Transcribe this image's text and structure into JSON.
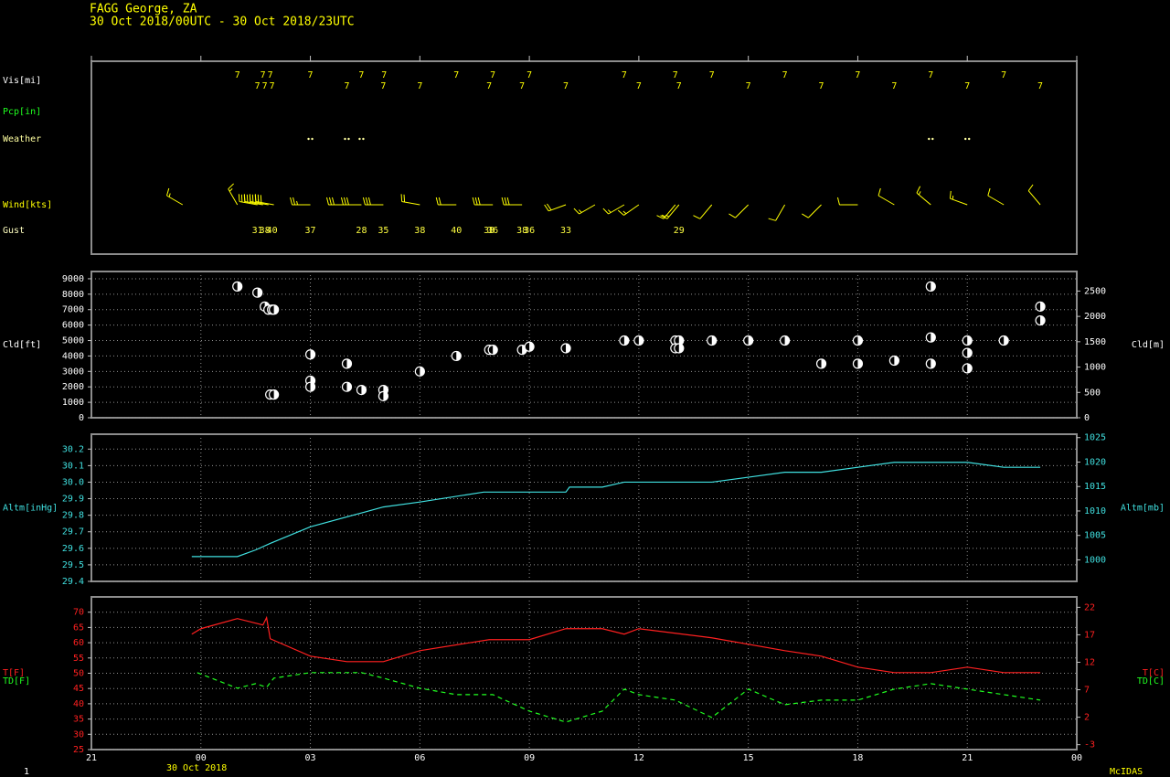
{
  "header": {
    "station": "FAGG  George,  ZA",
    "period": "30 Oct 2018/00UTC - 30 Oct 2018/23UTC"
  },
  "footer": {
    "page": "1",
    "brand": "McIDAS"
  },
  "chart_data": [
    {
      "type": "station-plot",
      "vis": {
        "name": "Vis[mi]",
        "color": "#ffff00",
        "label_color": "#ffffff",
        "x": [
          1,
          1.55,
          1.7,
          1.75,
          1.9,
          1.95,
          3,
          4,
          4.4,
          5,
          5.02,
          6,
          7,
          7.9,
          8,
          8.8,
          9,
          10,
          11.6,
          12,
          13,
          13.1,
          14,
          15,
          16,
          17,
          18,
          19,
          20,
          21,
          22,
          23
        ],
        "values": [
          7,
          7,
          7,
          7,
          7,
          7,
          7,
          7,
          7,
          7,
          7,
          7,
          7,
          7,
          7,
          7,
          7,
          7,
          7,
          7,
          7,
          7,
          7,
          7,
          7,
          7,
          7,
          7,
          7,
          7,
          7,
          7
        ]
      },
      "pcp": {
        "name": "Pcp[in]",
        "color": "#20ff20"
      },
      "weather": {
        "name": "Weather",
        "color": "#ffffa0",
        "x": [
          3,
          4,
          4.4,
          20,
          21
        ]
      },
      "wind": {
        "name": "Wind[kts]",
        "color": "#ffff00",
        "x": [
          -0.5,
          1,
          1.55,
          1.7,
          1.85,
          2,
          3,
          4,
          4.4,
          5,
          6,
          7,
          8,
          8.8,
          10,
          10.8,
          11.6,
          12,
          13,
          13.1,
          14,
          15,
          16,
          17,
          18,
          19,
          20,
          21,
          22,
          23
        ],
        "direction": [
          300,
          330,
          280,
          280,
          280,
          280,
          270,
          270,
          270,
          270,
          280,
          270,
          270,
          270,
          250,
          240,
          240,
          235,
          220,
          220,
          220,
          225,
          210,
          225,
          270,
          300,
          310,
          290,
          300,
          320
        ],
        "speed": [
          15,
          15,
          30,
          30,
          35,
          30,
          25,
          30,
          30,
          30,
          20,
          20,
          30,
          30,
          20,
          15,
          15,
          15,
          15,
          15,
          10,
          10,
          10,
          10,
          10,
          10,
          15,
          15,
          10,
          10
        ]
      },
      "gust": {
        "name": "Gust",
        "color": "#ffff40",
        "label_color": "#ffffc0",
        "x": [
          1.55,
          1.75,
          1.95,
          3,
          4.4,
          5,
          6,
          7,
          7.9,
          8,
          8.8,
          9,
          10,
          13.1
        ],
        "values": [
          31,
          38,
          40,
          37,
          28,
          35,
          38,
          40,
          38,
          36,
          38,
          36,
          33,
          29
        ]
      }
    },
    {
      "type": "scatter",
      "ylabel": "Cld[ft]",
      "y2label": "Cld[m]",
      "axis_color": "#ffffff",
      "color": "#ffffff",
      "grid": true,
      "ylim": [
        0,
        9470
      ],
      "yticks": [
        0,
        1000,
        2000,
        3000,
        4000,
        5000,
        6000,
        7000,
        8000,
        9000
      ],
      "y2lim": [
        0,
        2886
      ],
      "y2ticks": [
        0,
        500,
        1000,
        1500,
        2000,
        2500
      ],
      "x": [
        1,
        1.55,
        1.75,
        1.85,
        1.95,
        2,
        1.9,
        2,
        3,
        3,
        3,
        4,
        4,
        4.4,
        5,
        5,
        6,
        7,
        7.9,
        8,
        8.8,
        9,
        10,
        11.6,
        12,
        13,
        13.1,
        13,
        13.1,
        14,
        15,
        16,
        17,
        18,
        18,
        19,
        20,
        20,
        20,
        21,
        21,
        21,
        22,
        23,
        23
      ],
      "values": [
        8500,
        8100,
        7200,
        7000,
        7000,
        7000,
        1500,
        1500,
        4100,
        2400,
        2000,
        3500,
        2000,
        1800,
        1800,
        1400,
        3000,
        4000,
        4400,
        4400,
        4400,
        4600,
        4500,
        5000,
        5000,
        5000,
        5000,
        4500,
        4500,
        5000,
        5000,
        5000,
        3500,
        5000,
        3500,
        3700,
        8500,
        5200,
        3500,
        5000,
        4200,
        3200,
        5000,
        7200,
        6300
      ]
    },
    {
      "type": "line",
      "ylabel": "Altm[inHg]",
      "y2label": "Altm[mb]",
      "axis_color": "#40e0e0",
      "grid": true,
      "ylim": [
        29.4,
        30.29
      ],
      "yticks": [
        29.4,
        29.5,
        29.6,
        29.7,
        29.8,
        29.9,
        {
          "value": 30,
          "label": "30.0"
        },
        30.1,
        30.2
      ],
      "y2lim": [
        995.6,
        1025.7
      ],
      "y2ticks": [
        1000,
        1005,
        1010,
        1015,
        1020,
        1025
      ],
      "series": [
        {
          "color": "#40e0e0",
          "x": [
            -0.25,
            1,
            1.5,
            1.9,
            3,
            4.5,
            5,
            6,
            7.75,
            10,
            10.1,
            11,
            11.6,
            14,
            15,
            16,
            17,
            18,
            19,
            21,
            22,
            23
          ],
          "values": [
            29.55,
            29.55,
            29.59,
            29.63,
            29.73,
            29.82,
            29.85,
            29.88,
            29.94,
            29.94,
            29.97,
            29.97,
            30,
            30,
            30.03,
            30.06,
            30.06,
            30.09,
            30.12,
            30.12,
            30.09,
            30.09
          ]
        }
      ]
    },
    {
      "type": "line",
      "axis_color": "#ff2020",
      "grid": true,
      "xlabel": "30 Oct 2018",
      "xlim": [
        -3,
        24
      ],
      "xticks": [
        {
          "value": -3,
          "label": "21"
        },
        {
          "value": 0,
          "label": "00"
        },
        {
          "value": 3,
          "label": "03"
        },
        {
          "value": 6,
          "label": "06"
        },
        {
          "value": 9,
          "label": "09"
        },
        12,
        15,
        18,
        21,
        {
          "value": 24,
          "label": "00"
        }
      ],
      "ylim": [
        25,
        75
      ],
      "yticks": [
        25,
        30,
        35,
        40,
        45,
        50,
        55,
        60,
        65,
        70
      ],
      "y2lim": [
        -3.89,
        23.89
      ],
      "y2ticks": [
        -3,
        2,
        7,
        12,
        17,
        22
      ],
      "y2labels": [
        "T[C]",
        "TD[C]"
      ],
      "series": [
        {
          "name": "T[F]",
          "color": "#ff2020",
          "dashed": false,
          "x": [
            -0.25,
            0,
            1,
            1.7,
            1.8,
            1.9,
            3,
            4,
            5,
            6,
            7.9,
            9,
            10,
            11,
            11.6,
            12,
            14,
            16,
            17,
            18,
            19,
            20,
            21,
            22,
            23
          ],
          "values": [
            62.8,
            64.6,
            67.9,
            65.8,
            68.2,
            61.3,
            55.6,
            53.8,
            53.8,
            57.4,
            61,
            61,
            64.6,
            64.6,
            62.8,
            64.6,
            61.6,
            57.4,
            55.6,
            52,
            50.2,
            50.2,
            52,
            50.2,
            50.2
          ]
        },
        {
          "name": "TD[F]",
          "color": "#20ff20",
          "dashed": true,
          "x": [
            -0.1,
            1,
            1.5,
            1.8,
            2,
            3,
            4.4,
            5,
            6,
            7,
            8,
            9,
            10,
            11,
            11.6,
            12,
            13,
            14,
            15,
            16,
            17,
            18,
            19,
            20,
            21,
            22,
            23
          ],
          "values": [
            50.2,
            45.1,
            46.6,
            45.4,
            48.4,
            50.2,
            50.2,
            48.4,
            45.1,
            43,
            43,
            37.6,
            34,
            37.6,
            44.8,
            43,
            41.2,
            35.5,
            44.8,
            39.7,
            41.2,
            41.2,
            44.8,
            46.6,
            44.8,
            43,
            41.2
          ]
        }
      ]
    }
  ]
}
